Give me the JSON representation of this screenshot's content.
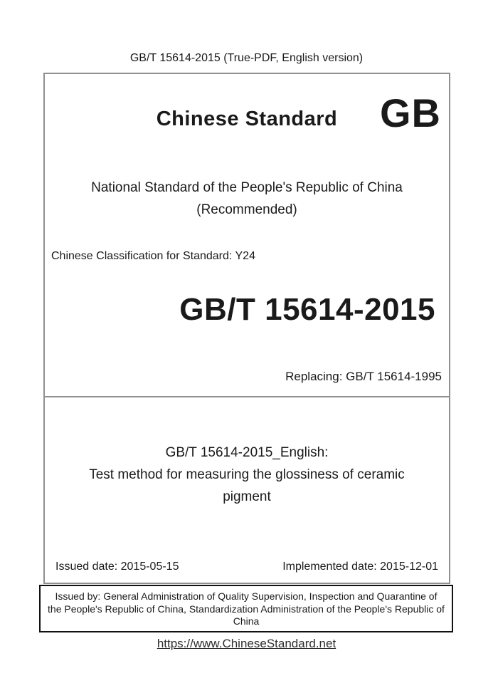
{
  "page": {
    "header": "GB/T 15614-2015 (True-PDF, English version)",
    "footer_url": "https://www.ChineseStandard.net"
  },
  "cover": {
    "brand_title": "Chinese Standard",
    "gb_logo": "GB",
    "national_line1": "National Standard of the People's Republic of China",
    "national_line2": "(Recommended)",
    "classification": "Chinese Classification for Standard: Y24",
    "standard_code": "GB/T 15614-2015",
    "replacing": "Replacing: GB/T 15614-1995"
  },
  "english_title": {
    "lines": [
      "GB/T 15614-2015_English:",
      "Test method for measuring the glossiness of ceramic",
      "pigment"
    ]
  },
  "dates": {
    "issued": "Issued date: 2015-05-15",
    "implemented": "Implemented date: 2015-12-01"
  },
  "issuer": {
    "lines": [
      "Issued by: General Administration of Quality Supervision, Inspection and Quarantine of",
      "the People's Republic of China, Standardization Administration of the People's Republic of",
      "China"
    ]
  },
  "colors": {
    "main_box_border": "#8f8f8f",
    "issuer_box_border": "#111111",
    "text": "#1a1a1a",
    "link": "#2e2e2e",
    "background": "#ffffff"
  }
}
